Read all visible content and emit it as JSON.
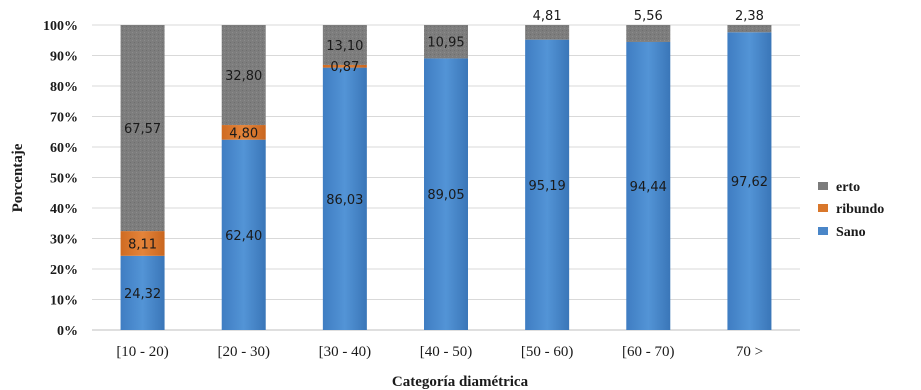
{
  "chart_data": {
    "type": "bar",
    "stacked": true,
    "categories": [
      "[10 - 20)",
      "[20 - 30)",
      "[30 - 40)",
      "[40 - 50)",
      "[50 - 60)",
      "[60 - 70)",
      "70 >"
    ],
    "series": [
      {
        "name": "Sano",
        "color": "#4a86c8",
        "values": [
          24.32,
          62.4,
          86.03,
          89.05,
          95.19,
          94.44,
          97.62
        ],
        "labels": [
          "24,32",
          "62,40",
          "86,03",
          "89,05",
          "95,19",
          "94,44",
          "97,62"
        ]
      },
      {
        "name": "Moribundo",
        "color": "#d9772b",
        "values": [
          8.11,
          4.8,
          0.87,
          0,
          0,
          0,
          0
        ],
        "labels": [
          "8,11",
          "4,80",
          "0,87",
          "",
          "",
          "",
          ""
        ]
      },
      {
        "name": "Muerto",
        "color": "#7b7b7b",
        "values": [
          67.57,
          32.8,
          13.1,
          10.95,
          4.81,
          5.56,
          2.38
        ],
        "labels": [
          "67,57",
          "32,80",
          "13,10",
          "10,95",
          "4,81",
          "5,56",
          "2,38"
        ]
      }
    ],
    "xlabel": "Categoría diamétrica",
    "ylabel": "Porcentaje",
    "ylim": [
      0,
      100
    ],
    "yticks": [
      "0%",
      "10%",
      "20%",
      "30%",
      "40%",
      "50%",
      "60%",
      "70%",
      "80%",
      "90%",
      "100%"
    ],
    "legend": {
      "placement": "right",
      "entries": [
        {
          "text": "erto",
          "color": "#7b7b7b"
        },
        {
          "text": "ribundo",
          "color": "#d9772b"
        },
        {
          "text": "Sano",
          "color": "#4a86c8"
        }
      ]
    }
  }
}
